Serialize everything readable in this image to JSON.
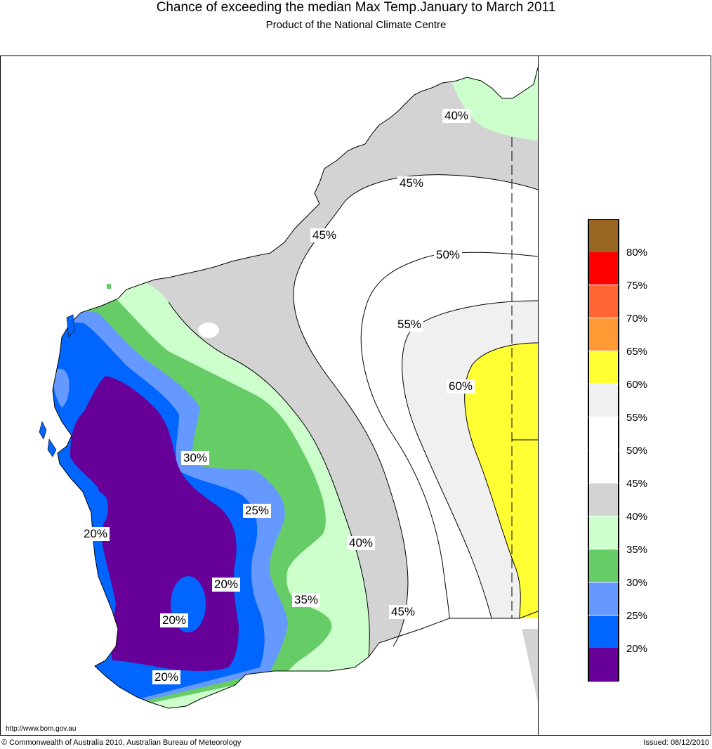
{
  "header": {
    "title": "Chance of exceeding the median Max Temp.January to March 2011",
    "subtitle": "Product of the National Climate Centre"
  },
  "map": {
    "region": "Western Australia",
    "contour_labels": [
      "40%",
      "45%",
      "45%",
      "50%",
      "55%",
      "60%",
      "30%",
      "25%",
      "20%",
      "20%",
      "20%",
      "20%",
      "40%",
      "35%",
      "45%"
    ]
  },
  "legend": {
    "bands": [
      {
        "color": "#996622",
        "label": "80%"
      },
      {
        "color": "#ff0000",
        "label": "75%"
      },
      {
        "color": "#ff6633",
        "label": "70%"
      },
      {
        "color": "#ff9933",
        "label": "65%"
      },
      {
        "color": "#ffff33",
        "label": "60%"
      },
      {
        "color": "#f0f0f0",
        "label": "55%"
      },
      {
        "color": "#ffffff",
        "label": "50%"
      },
      {
        "color": "#ffffff",
        "label": "45%"
      },
      {
        "color": "#d3d3d3",
        "label": "40%"
      },
      {
        "color": "#ccffcc",
        "label": "35%"
      },
      {
        "color": "#66cc66",
        "label": "30%"
      },
      {
        "color": "#6699ff",
        "label": "25%"
      },
      {
        "color": "#0066ff",
        "label": "20%"
      },
      {
        "color": "#660099",
        "label": ""
      }
    ]
  },
  "footer": {
    "url": "http://www.bom.gov.au",
    "copyright": "© Commonwealth of Australia 2010, Australian Bureau of Meteorology",
    "issued": "Issued: 08/12/2010"
  }
}
